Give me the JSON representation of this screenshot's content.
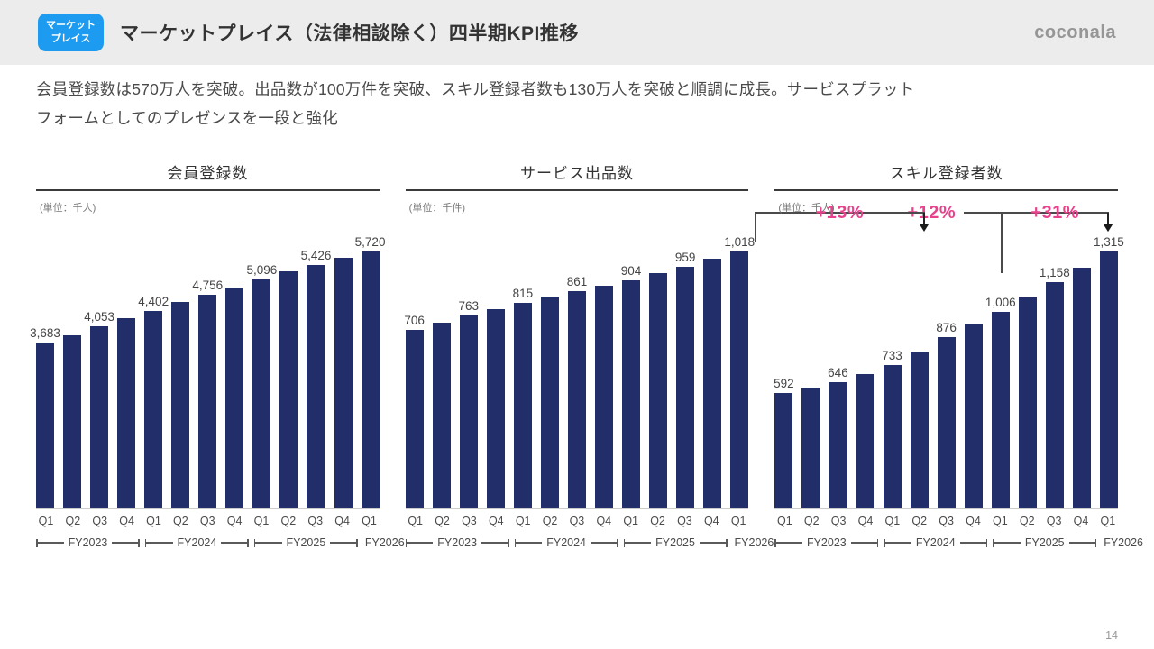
{
  "header": {
    "badge": "マーケット\nプレイス",
    "title": "マーケットプレイス（法律相談除く）四半期KPI推移",
    "logo": "coconala"
  },
  "summary": {
    "line1": "会員登録数は570万人を突破。出品数が100万件を突破、スキル登録者数も130万人を突破と順調に成長。サービスプラット",
    "line2": "フォームとしてのプレゼンスを一段と強化"
  },
  "page_number": "14",
  "colors": {
    "bar_navy": "#212e6a",
    "accent_pink": "#e8428c",
    "badge_blue": "#1d9bf0",
    "header_gray": "#ececec"
  },
  "chart_data": [
    {
      "type": "bar",
      "title": "会員登録数",
      "unit": "(単位：千人)",
      "growth_annotation": {
        "label": "+12%",
        "from_bar_index": 8,
        "to_bar_index": 12,
        "from_quarter": "FY2025 Q1",
        "to_quarter": "FY2026 Q1"
      },
      "categories": [
        "Q1",
        "Q2",
        "Q3",
        "Q4",
        "Q1",
        "Q2",
        "Q3",
        "Q4",
        "Q1",
        "Q2",
        "Q3",
        "Q4",
        "Q1"
      ],
      "fiscal_years": [
        "FY2023",
        "FY2024",
        "FY2025",
        "FY2026"
      ],
      "values": [
        3683,
        3850,
        4053,
        4230,
        4402,
        4590,
        4756,
        4910,
        5096,
        5270,
        5426,
        5580,
        5720
      ],
      "value_labels": [
        "3,683",
        "",
        "4,053",
        "",
        "4,402",
        "",
        "4,756",
        "",
        "5,096",
        "",
        "5,426",
        "",
        "5,720"
      ],
      "ylim": [
        0,
        6000
      ],
      "grid": false,
      "legend": false
    },
    {
      "type": "bar",
      "title": "サービス出品数",
      "unit": "(単位：千件)",
      "growth_annotation": {
        "label": "+13%",
        "from_bar_index": 8,
        "to_bar_index": 12,
        "from_quarter": "FY2025 Q1",
        "to_quarter": "FY2026 Q1"
      },
      "categories": [
        "Q1",
        "Q2",
        "Q3",
        "Q4",
        "Q1",
        "Q2",
        "Q3",
        "Q4",
        "Q1",
        "Q2",
        "Q3",
        "Q4",
        "Q1"
      ],
      "fiscal_years": [
        "FY2023",
        "FY2024",
        "FY2025",
        "FY2026"
      ],
      "values": [
        706,
        735,
        763,
        790,
        815,
        838,
        861,
        883,
        904,
        931,
        959,
        988,
        1018
      ],
      "value_labels": [
        "706",
        "",
        "763",
        "",
        "815",
        "",
        "861",
        "",
        "904",
        "",
        "959",
        "",
        "1,018"
      ],
      "ylim": [
        0,
        1100
      ],
      "grid": false,
      "legend": false
    },
    {
      "type": "bar",
      "title": "スキル登録者数",
      "unit": "(単位：千人)",
      "growth_annotation": {
        "label": "+31%",
        "from_bar_index": 8,
        "to_bar_index": 12,
        "from_quarter": "FY2025 Q1",
        "to_quarter": "FY2026 Q1"
      },
      "categories": [
        "Q1",
        "Q2",
        "Q3",
        "Q4",
        "Q1",
        "Q2",
        "Q3",
        "Q4",
        "Q1",
        "Q2",
        "Q3",
        "Q4",
        "Q1"
      ],
      "fiscal_years": [
        "FY2023",
        "FY2024",
        "FY2025",
        "FY2026"
      ],
      "values": [
        592,
        618,
        646,
        688,
        733,
        801,
        876,
        939,
        1006,
        1079,
        1158,
        1233,
        1315
      ],
      "value_labels": [
        "592",
        "",
        "646",
        "",
        "733",
        "",
        "876",
        "",
        "1,006",
        "",
        "1,158",
        "",
        "1,315"
      ],
      "ylim": [
        0,
        1400
      ],
      "grid": false,
      "legend": false
    }
  ]
}
